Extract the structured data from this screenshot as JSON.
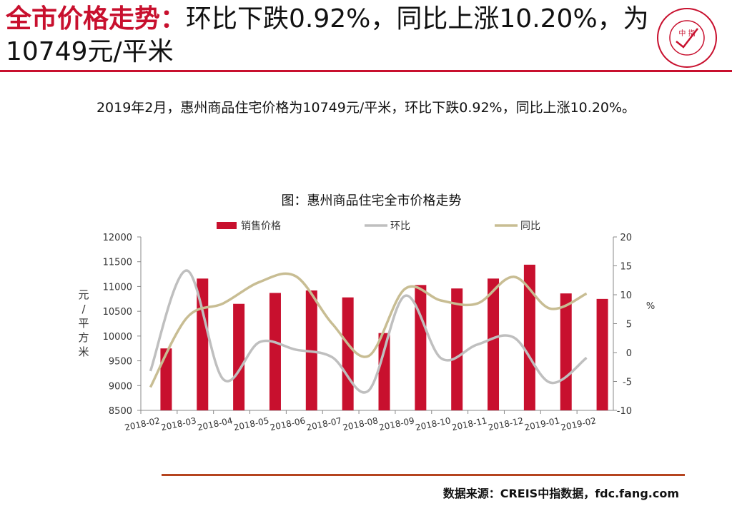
{
  "header": {
    "title_highlight": "全市价格走势：",
    "title_rest": "环比下跌0.92%，同比上涨10.20%，为10749元/平米",
    "accent_color": "#c8102e"
  },
  "summary": "2019年2月，惠州商品住宅价格为10749元/平米，环比下跌0.92%，同比上涨10.20%。",
  "logo": {
    "center_text": "中 指",
    "icon": "china-index-academy-seal"
  },
  "chart_data": {
    "type": "bar",
    "title": "图：惠州商品住宅全市价格走势",
    "categories": [
      "2018-02",
      "2018-03",
      "2018-04",
      "2018-05",
      "2018-06",
      "2018-07",
      "2018-08",
      "2018-09",
      "2018-10",
      "2018-11",
      "2018-12",
      "2019-01",
      "2019-02"
    ],
    "series": [
      {
        "name": "销售价格",
        "type": "bar",
        "axis": "left",
        "color": "#c8102e",
        "values": [
          9750,
          11160,
          10650,
          10870,
          10920,
          10780,
          10060,
          11030,
          10960,
          11160,
          11440,
          10860,
          10749
        ]
      },
      {
        "name": "环比",
        "type": "line",
        "axis": "right",
        "color": "#bfbfbf",
        "values": [
          -3.2,
          14.2,
          -4.6,
          1.8,
          0.5,
          -0.8,
          -6.6,
          9.8,
          -1.0,
          1.4,
          2.6,
          -5.2,
          -0.9
        ]
      },
      {
        "name": "同比",
        "type": "line",
        "axis": "right",
        "color": "#c8bd93",
        "values": [
          -6.0,
          6.0,
          8.5,
          12.2,
          13.2,
          5.0,
          -0.6,
          11.0,
          9.0,
          8.5,
          13.1,
          7.6,
          10.2
        ]
      }
    ],
    "ylabel": "元/平方米",
    "y2label": "%",
    "ylim": [
      8500,
      12000
    ],
    "yticks": [
      8500,
      9000,
      9500,
      10000,
      10500,
      11000,
      11500,
      12000
    ],
    "y2lim": [
      -10,
      20
    ],
    "y2ticks": [
      -10,
      -5,
      0,
      5,
      10,
      15,
      20
    ],
    "legend_position": "top",
    "grid": false
  },
  "footer": {
    "source": "数据来源：CREIS中指数据，fdc.fang.com"
  }
}
